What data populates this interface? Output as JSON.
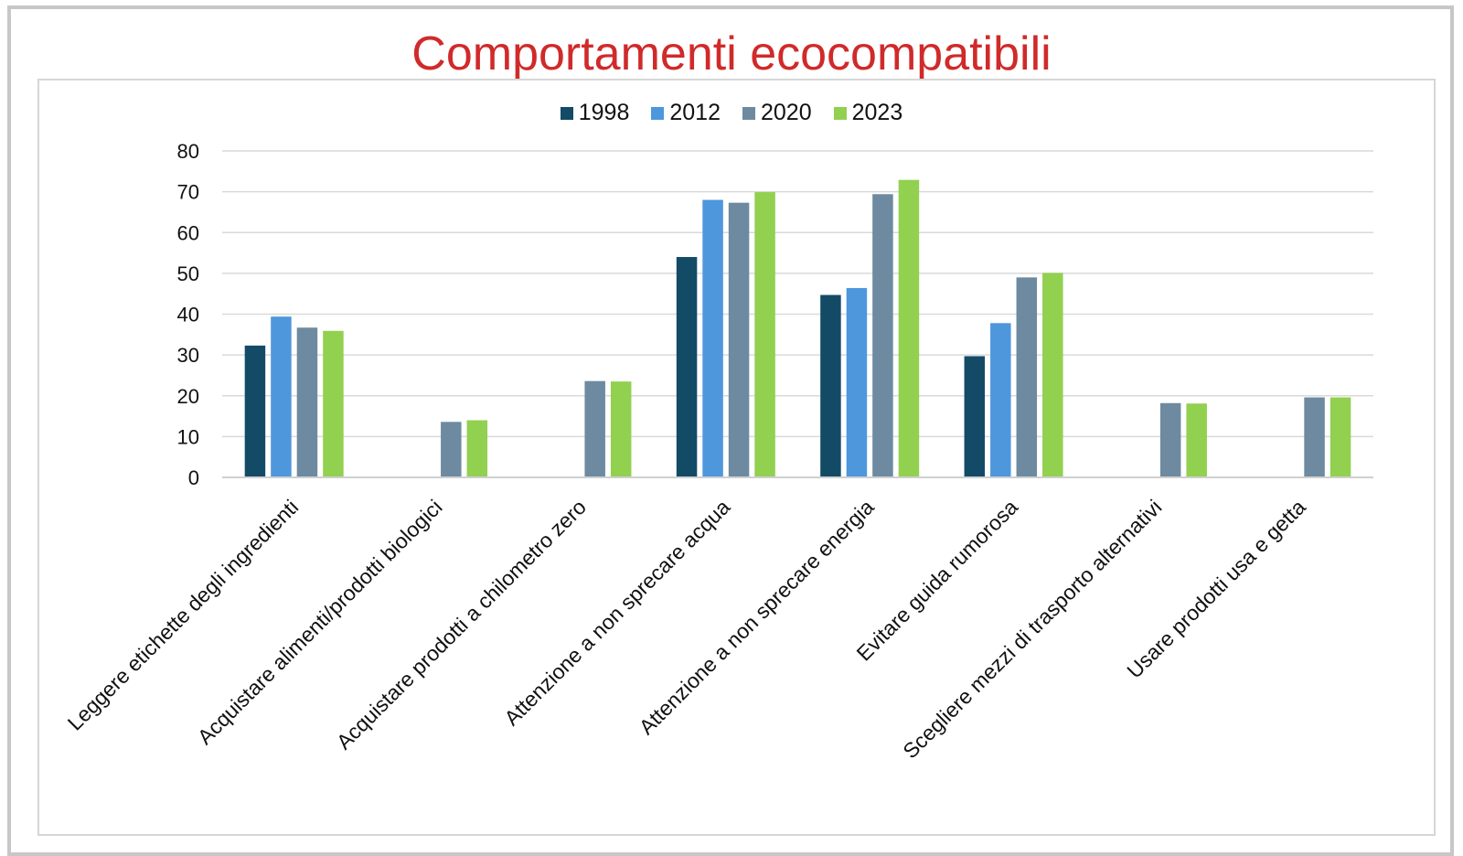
{
  "chart_data": {
    "type": "bar",
    "title": "Comportamenti ecocompatibili",
    "xlabel": "",
    "ylabel": "",
    "ylim": [
      0,
      80
    ],
    "yticks": [
      0,
      10,
      20,
      30,
      40,
      50,
      60,
      70,
      80
    ],
    "grid": true,
    "legend_position": "top",
    "categories": [
      "Leggere etichette degli ingredienti",
      "Acquistare alimenti/prodotti biologici",
      "Acquistare prodotti a chilometro zero",
      "Attenzione a non sprecare acqua",
      "Attenzione a non sprecare energia",
      "Evitare guida rumorosa",
      "Scegliere mezzi di trasporto alternativi",
      "Usare prodotti usa e getta"
    ],
    "series": [
      {
        "name": "1998",
        "color": "#134b67",
        "values": [
          32.3,
          null,
          null,
          54,
          44.7,
          29.7,
          null,
          null
        ]
      },
      {
        "name": "2012",
        "color": "#4e97dc",
        "values": [
          39.4,
          null,
          null,
          68,
          46.4,
          37.8,
          null,
          null
        ]
      },
      {
        "name": "2020",
        "color": "#6d8aa0",
        "values": [
          36.7,
          13.6,
          23.6,
          67.3,
          69.4,
          49,
          18.2,
          19.6
        ]
      },
      {
        "name": "2023",
        "color": "#92d050",
        "values": [
          35.9,
          14,
          23.5,
          69.9,
          72.9,
          50.1,
          18.1,
          19.6
        ]
      }
    ]
  }
}
